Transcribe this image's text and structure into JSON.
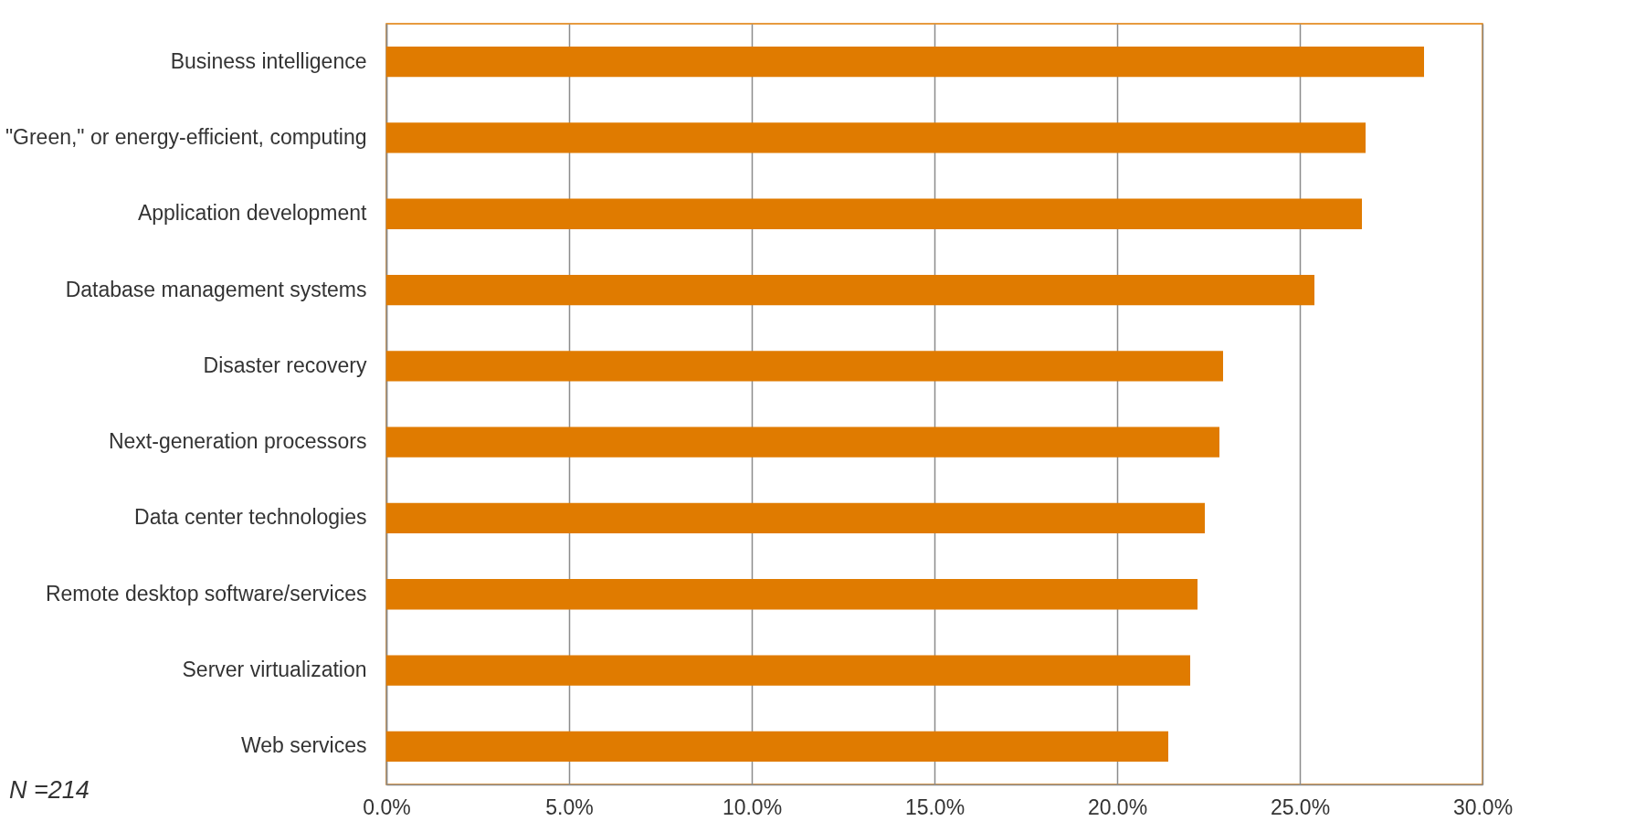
{
  "chart_data": {
    "type": "bar",
    "orientation": "horizontal",
    "categories": [
      "Business intelligence",
      "\"Green,\" or energy-efficient, computing",
      "Application development",
      "Database management systems",
      "Disaster recovery",
      "Next-generation processors",
      "Data center technologies",
      "Remote desktop software/services",
      "Server virtualization",
      "Web services"
    ],
    "values": [
      28.4,
      26.8,
      26.7,
      25.4,
      22.9,
      22.8,
      22.4,
      22.2,
      22.0,
      21.4
    ],
    "color": "#e07b00",
    "xlim": [
      0,
      30
    ],
    "xticks": [
      {
        "value": 0,
        "label": "0.0%"
      },
      {
        "value": 5,
        "label": "5.0%"
      },
      {
        "value": 10,
        "label": "10.0%"
      },
      {
        "value": 15,
        "label": "15.0%"
      },
      {
        "value": 20,
        "label": "20.0%"
      },
      {
        "value": 25,
        "label": "25.0%"
      },
      {
        "value": 30,
        "label": "30.0%"
      }
    ],
    "grid": "x",
    "annotations": [
      "N =214"
    ]
  }
}
